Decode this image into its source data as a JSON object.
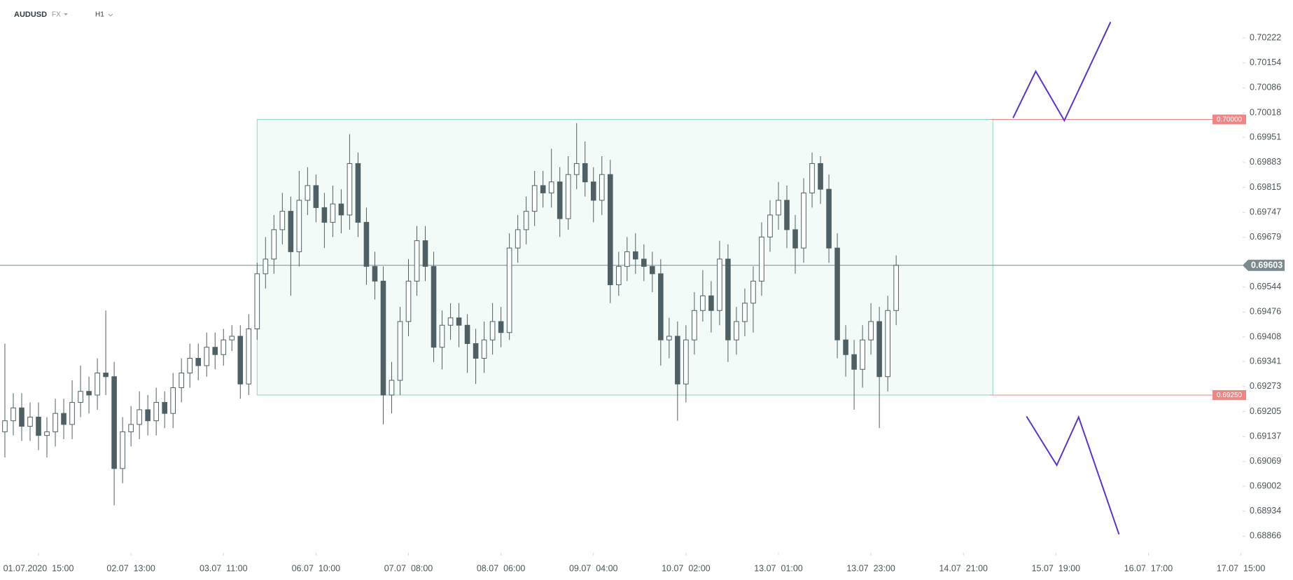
{
  "header": {
    "symbol": "AUDUSD",
    "market": "FX",
    "interval": "H1"
  },
  "chart_data": {
    "type": "candlestick",
    "xlim": [
      -0.58,
      147.2
    ],
    "ylim": [
      0.68821,
      0.70325
    ],
    "xticks": [
      {
        "value": 4,
        "label": "01.07.2020  15:00"
      },
      {
        "value": 15,
        "label": "02.07  13:00"
      },
      {
        "value": 26,
        "label": "03.07  11:00"
      },
      {
        "value": 37,
        "label": "06.07  10:00"
      },
      {
        "value": 48,
        "label": "07.07  08:00"
      },
      {
        "value": 59,
        "label": "08.07  06:00"
      },
      {
        "value": 70,
        "label": "09.07  04:00"
      },
      {
        "value": 81,
        "label": "10.07  02:00"
      },
      {
        "value": 92,
        "label": "13.07  01:00"
      },
      {
        "value": 103,
        "label": "13.07  23:00"
      },
      {
        "value": 114,
        "label": "14.07  21:00"
      },
      {
        "value": 125,
        "label": "15.07  19:00"
      },
      {
        "value": 136,
        "label": "16.07  17:00"
      },
      {
        "value": 147,
        "label": "17.07  15:00"
      }
    ],
    "yticks": [
      0.70222,
      0.70154,
      0.70086,
      0.70018,
      0.69951,
      0.69883,
      0.69815,
      0.69747,
      0.69679,
      0.69544,
      0.69476,
      0.69408,
      0.69341,
      0.69273,
      0.69205,
      0.69137,
      0.69069,
      0.69002,
      0.68934,
      0.68866
    ],
    "up_color": "#ffffff",
    "down_color": "#4f6064",
    "outline_color": "#4f6064",
    "open": [
      0.6915,
      0.6918,
      0.69215,
      0.69165,
      0.6919,
      0.6914,
      0.6915,
      0.692,
      0.6917,
      0.6923,
      0.6926,
      0.6925,
      0.6931,
      0.693,
      0.6905,
      0.6915,
      0.6917,
      0.6921,
      0.6918,
      0.6923,
      0.692,
      0.6927,
      0.6931,
      0.6935,
      0.6933,
      0.6938,
      0.6936,
      0.694,
      0.6941,
      0.6928,
      0.6943,
      0.6958,
      0.6962,
      0.697,
      0.6975,
      0.6964,
      0.6978,
      0.6982,
      0.6976,
      0.6972,
      0.6977,
      0.6974,
      0.6988,
      0.6972,
      0.696,
      0.6956,
      0.6925,
      0.6929,
      0.6945,
      0.6956,
      0.6967,
      0.696,
      0.6938,
      0.6944,
      0.6946,
      0.6944,
      0.6939,
      0.6935,
      0.694,
      0.6945,
      0.6942,
      0.6965,
      0.697,
      0.6975,
      0.6982,
      0.698,
      0.6983,
      0.6973,
      0.6985,
      0.6988,
      0.6983,
      0.6978,
      0.6985,
      0.6955,
      0.696,
      0.6964,
      0.6962,
      0.696,
      0.6958,
      0.694,
      0.6941,
      0.6928,
      0.694,
      0.6948,
      0.6952,
      0.6948,
      0.6962,
      0.694,
      0.6945,
      0.695,
      0.6956,
      0.6968,
      0.6974,
      0.6978,
      0.697,
      0.6965,
      0.698,
      0.6988,
      0.6981,
      0.6965,
      0.694,
      0.6936,
      0.6932,
      0.694,
      0.6945,
      0.693,
      0.6948
    ],
    "high": [
      0.6939,
      0.69255,
      0.69255,
      0.6923,
      0.6923,
      0.6919,
      0.6924,
      0.6924,
      0.6929,
      0.6933,
      0.693,
      0.6935,
      0.6948,
      0.6934,
      0.6919,
      0.6922,
      0.6926,
      0.6925,
      0.6927,
      0.6926,
      0.6931,
      0.6935,
      0.6939,
      0.6939,
      0.6942,
      0.6942,
      0.6943,
      0.6944,
      0.6944,
      0.6947,
      0.6961,
      0.6968,
      0.6974,
      0.698,
      0.6979,
      0.6986,
      0.6987,
      0.6985,
      0.698,
      0.6982,
      0.6981,
      0.6996,
      0.6991,
      0.6976,
      0.6964,
      0.696,
      0.6934,
      0.6949,
      0.6962,
      0.6971,
      0.6971,
      0.6964,
      0.6948,
      0.695,
      0.695,
      0.6947,
      0.6943,
      0.6945,
      0.695,
      0.6949,
      0.6969,
      0.6974,
      0.6979,
      0.6986,
      0.6986,
      0.6992,
      0.6987,
      0.699,
      0.6999,
      0.6994,
      0.6987,
      0.699,
      0.6989,
      0.6964,
      0.6968,
      0.6969,
      0.6966,
      0.6964,
      0.6962,
      0.6946,
      0.6945,
      0.6944,
      0.6953,
      0.6959,
      0.6956,
      0.6967,
      0.6966,
      0.6949,
      0.6954,
      0.696,
      0.6972,
      0.6978,
      0.6983,
      0.6982,
      0.6974,
      0.6984,
      0.6991,
      0.699,
      0.6985,
      0.6969,
      0.6944,
      0.694,
      0.6944,
      0.695,
      0.6949,
      0.6952,
      0.6963
    ],
    "low": [
      0.6908,
      0.6914,
      0.69125,
      0.69125,
      0.691,
      0.6908,
      0.6911,
      0.6913,
      0.6913,
      0.6919,
      0.692,
      0.6921,
      0.6925,
      0.6895,
      0.6901,
      0.6911,
      0.6913,
      0.6914,
      0.6914,
      0.6916,
      0.6916,
      0.6923,
      0.6927,
      0.6929,
      0.693,
      0.6932,
      0.6933,
      0.6937,
      0.6924,
      0.6925,
      0.694,
      0.6954,
      0.6958,
      0.6966,
      0.6952,
      0.696,
      0.6974,
      0.6972,
      0.6965,
      0.6968,
      0.6969,
      0.697,
      0.6968,
      0.6955,
      0.6951,
      0.6917,
      0.692,
      0.6925,
      0.6941,
      0.6952,
      0.6956,
      0.6934,
      0.6932,
      0.694,
      0.6938,
      0.6931,
      0.6928,
      0.6931,
      0.6936,
      0.6938,
      0.694,
      0.6961,
      0.6966,
      0.6971,
      0.6976,
      0.6976,
      0.6968,
      0.697,
      0.6981,
      0.6979,
      0.6972,
      0.6974,
      0.695,
      0.6952,
      0.6956,
      0.6958,
      0.6956,
      0.6953,
      0.6933,
      0.6935,
      0.6918,
      0.6923,
      0.6936,
      0.6945,
      0.6942,
      0.6944,
      0.6934,
      0.6936,
      0.6941,
      0.6942,
      0.6952,
      0.6964,
      0.697,
      0.6965,
      0.6958,
      0.6961,
      0.6976,
      0.6977,
      0.6961,
      0.6935,
      0.693,
      0.6921,
      0.6927,
      0.6936,
      0.6916,
      0.6926,
      0.6944
    ],
    "close": [
      0.6918,
      0.69215,
      0.69165,
      0.6919,
      0.6914,
      0.6915,
      0.692,
      0.6917,
      0.6923,
      0.6926,
      0.6925,
      0.6931,
      0.693,
      0.6905,
      0.6915,
      0.6917,
      0.6921,
      0.6918,
      0.6923,
      0.692,
      0.6927,
      0.6931,
      0.6935,
      0.6933,
      0.6938,
      0.6936,
      0.694,
      0.6941,
      0.6928,
      0.6943,
      0.6958,
      0.6962,
      0.697,
      0.6975,
      0.6964,
      0.6978,
      0.6982,
      0.6976,
      0.6972,
      0.6977,
      0.6974,
      0.6988,
      0.6972,
      0.696,
      0.6956,
      0.6925,
      0.6929,
      0.6945,
      0.6956,
      0.6967,
      0.696,
      0.6938,
      0.6944,
      0.6946,
      0.6944,
      0.6939,
      0.6935,
      0.694,
      0.6945,
      0.6942,
      0.6965,
      0.697,
      0.6975,
      0.6982,
      0.698,
      0.6983,
      0.6973,
      0.6985,
      0.6988,
      0.6983,
      0.6978,
      0.6985,
      0.6955,
      0.696,
      0.6964,
      0.6962,
      0.696,
      0.6958,
      0.694,
      0.6941,
      0.6928,
      0.694,
      0.6948,
      0.6952,
      0.6948,
      0.6962,
      0.694,
      0.6945,
      0.695,
      0.6956,
      0.6968,
      0.6974,
      0.6978,
      0.697,
      0.6965,
      0.698,
      0.6988,
      0.6981,
      0.6965,
      0.694,
      0.6936,
      0.6932,
      0.694,
      0.6945,
      0.693,
      0.6948,
      0.69603
    ],
    "current_price": {
      "value": 0.69603,
      "color": "#7b8a8e"
    },
    "range_box": {
      "x": [
        30,
        117.5
      ],
      "fill": "#f2fbf8",
      "stroke": "#8fd9bf",
      "top": {
        "value": 0.7,
        "label": "0.70000"
      },
      "bottom": {
        "value": 0.6925,
        "label": "0.69250"
      },
      "level_color": "#f08585"
    },
    "scenarios": [
      {
        "color": "#5b35c0",
        "x": [
          119.9,
          122.6,
          126.0,
          131.5
        ],
        "y": [
          0.70004,
          0.70131,
          0.69997,
          0.70265
        ]
      },
      {
        "color": "#5b35c0",
        "x": [
          121.5,
          125.1,
          127.7,
          132.5
        ],
        "y": [
          0.69192,
          0.69059,
          0.6919,
          0.68871
        ]
      }
    ]
  }
}
